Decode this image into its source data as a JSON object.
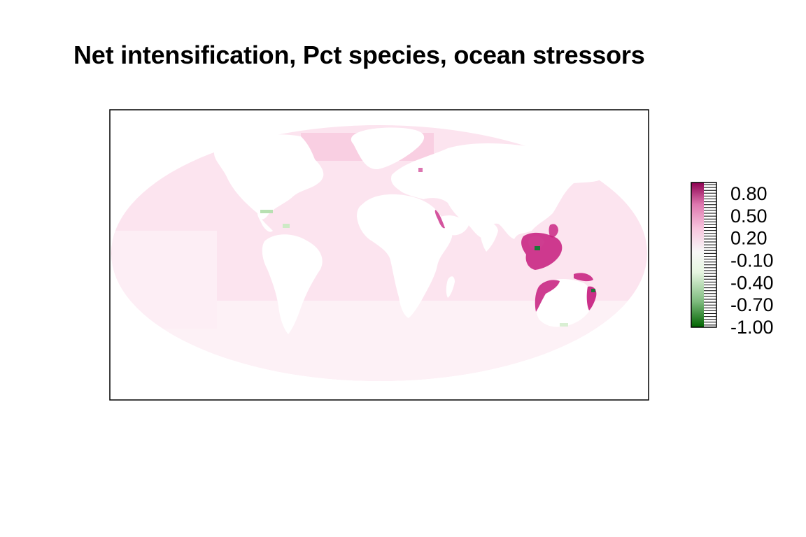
{
  "title": "Net intensification, Pct species, ocean stressors",
  "map": {
    "projection": "mollweide",
    "palette": {
      "low": "#006400",
      "mid": "#f7f7f7",
      "high": "#8e0152",
      "ocean_base": "#fde0ef",
      "land": "#ffffff",
      "frame": "#000000"
    },
    "hotspots": [
      {
        "region": "indonesia-philippines",
        "value": 0.8
      },
      {
        "region": "north-australia-coast",
        "value": 0.7
      },
      {
        "region": "east-australia-coast",
        "value": 0.7
      },
      {
        "region": "red-sea",
        "value": 0.6
      },
      {
        "region": "caribbean",
        "value": -0.2
      },
      {
        "region": "java-sea",
        "value": -0.9
      }
    ]
  },
  "legend": {
    "min": -1.0,
    "max": 0.95,
    "ticks": [
      "0.80",
      "0.50",
      "0.20",
      "-0.10",
      "-0.40",
      "-0.70",
      "-1.00"
    ],
    "tick_values": [
      0.8,
      0.5,
      0.2,
      -0.1,
      -0.4,
      -0.7,
      -1.0
    ]
  }
}
